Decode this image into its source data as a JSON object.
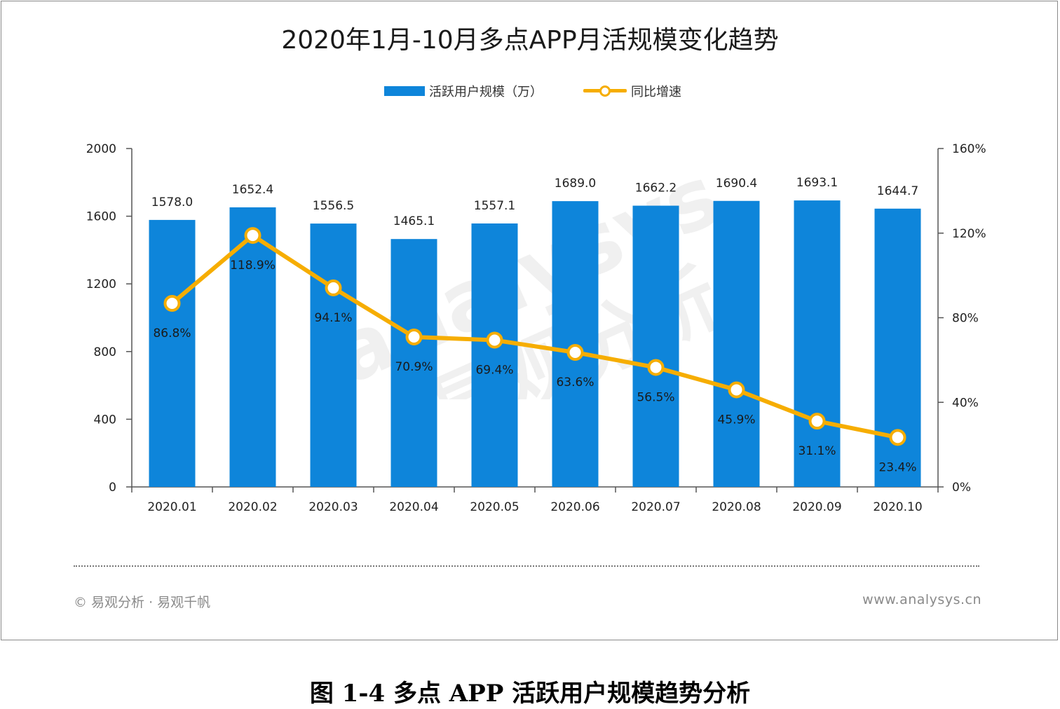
{
  "title": "2020年1月-10月多点APP月活规模变化趋势",
  "legend": {
    "bar_label": "活跃用户规模（万）",
    "line_label": "同比增速"
  },
  "footer": {
    "copyright": "© 易观分析 · 易观千帆",
    "website": "www.analysys.cn"
  },
  "caption": "图 1-4 多点 APP 活跃用户规模趋势分析",
  "watermark": {
    "latin": "analysys",
    "cjk": "易观分析"
  },
  "colors": {
    "bar": "#0e85da",
    "line": "#f6ad00",
    "axis": "#555555",
    "text": "#222222"
  },
  "chart_data": {
    "type": "bar",
    "categories": [
      "2020.01",
      "2020.02",
      "2020.03",
      "2020.04",
      "2020.05",
      "2020.06",
      "2020.07",
      "2020.08",
      "2020.09",
      "2020.10"
    ],
    "series": [
      {
        "name": "活跃用户规模（万）",
        "type": "bar",
        "axis": "left",
        "values": [
          1578.0,
          1652.4,
          1556.5,
          1465.1,
          1557.1,
          1689.0,
          1662.2,
          1690.4,
          1693.1,
          1644.7
        ],
        "labels": [
          "1578.0",
          "1652.4",
          "1556.5",
          "1465.1",
          "1557.1",
          "1689.0",
          "1662.2",
          "1690.4",
          "1693.1",
          "1644.7"
        ]
      },
      {
        "name": "同比增速",
        "type": "line",
        "axis": "right",
        "values": [
          86.8,
          118.9,
          94.1,
          70.9,
          69.4,
          63.6,
          56.5,
          45.9,
          31.1,
          23.4
        ],
        "labels": [
          "86.8%",
          "118.9%",
          "94.1%",
          "70.9%",
          "69.4%",
          "63.6%",
          "56.5%",
          "45.9%",
          "31.1%",
          "23.4%"
        ]
      }
    ],
    "left_axis": {
      "min": 0,
      "max": 2000,
      "ticks": [
        "0",
        "400",
        "800",
        "1200",
        "1600",
        "2000"
      ]
    },
    "right_axis": {
      "min": 0,
      "max": 160,
      "ticks": [
        "0%",
        "40%",
        "80%",
        "120%",
        "160%"
      ]
    },
    "grid": false,
    "legend_position": "top-center"
  }
}
